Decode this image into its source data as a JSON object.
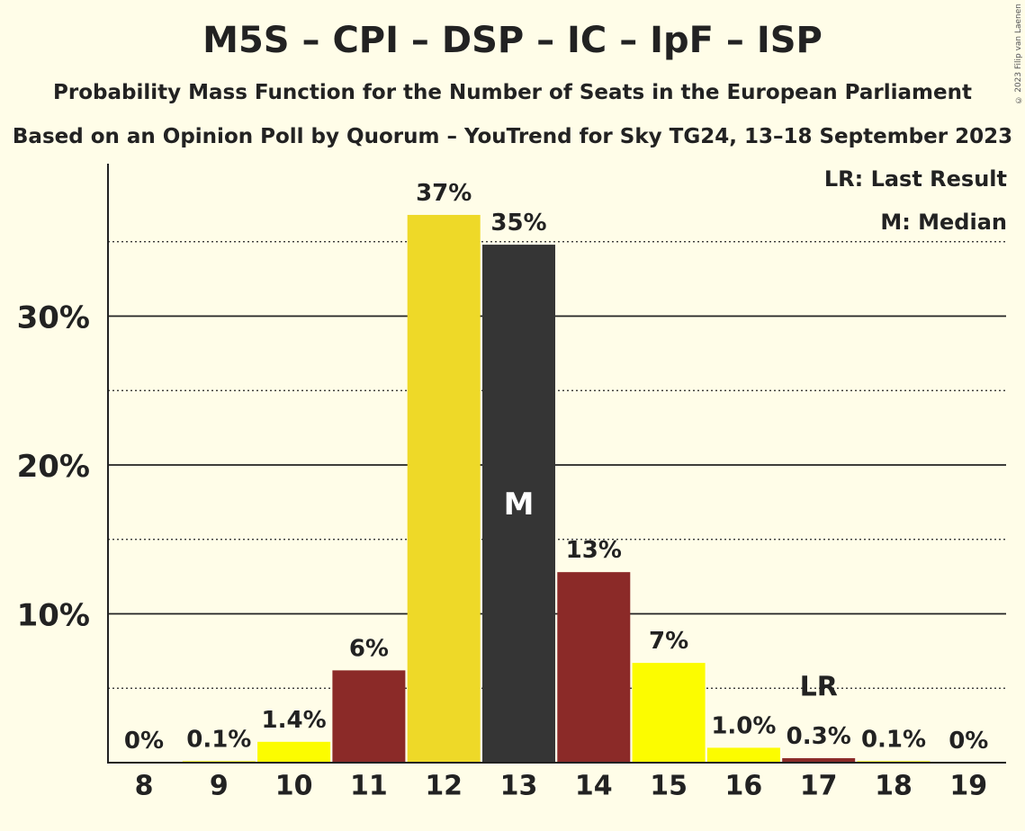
{
  "chart_data": {
    "type": "bar",
    "title": "M5S – CPI – DSP – IC – IpF – ISP",
    "subtitle": "Probability Mass Function for the Number of Seats in the European Parliament",
    "subtitle2": "Based on an Opinion Poll by Quorum – YouTrend for Sky TG24, 13–18 September 2023",
    "categories": [
      "8",
      "9",
      "10",
      "11",
      "12",
      "13",
      "14",
      "15",
      "16",
      "17",
      "18",
      "19"
    ],
    "values": [
      0.0,
      0.1,
      1.4,
      6.2,
      36.8,
      34.8,
      12.8,
      6.7,
      1.0,
      0.3,
      0.1,
      0.0
    ],
    "data_labels": [
      "0%",
      "0.1%",
      "1.4%",
      "6%",
      "37%",
      "35%",
      "13%",
      "7%",
      "1.0%",
      "0.3%",
      "0.1%",
      "0%"
    ],
    "bar_colors": [
      "#fcfc00",
      "#fcfc00",
      "#fcfc00",
      "#8b2a28",
      "#eed928",
      "#353535",
      "#8b2a28",
      "#fcfc00",
      "#fcfc00",
      "#8b2a28",
      "#fcfc00",
      "#fcfc00"
    ],
    "yticks": [
      "10%",
      "20%",
      "30%"
    ],
    "ylim": [
      0,
      40
    ],
    "median_category": "13",
    "median_marker": "M",
    "last_result_category": "17",
    "last_result_marker": "LR",
    "legend": [
      "LR: Last Result",
      "M: Median"
    ],
    "grid": true,
    "legend_position": "top-right"
  },
  "copyright": "© 2023 Filip van Laenen"
}
